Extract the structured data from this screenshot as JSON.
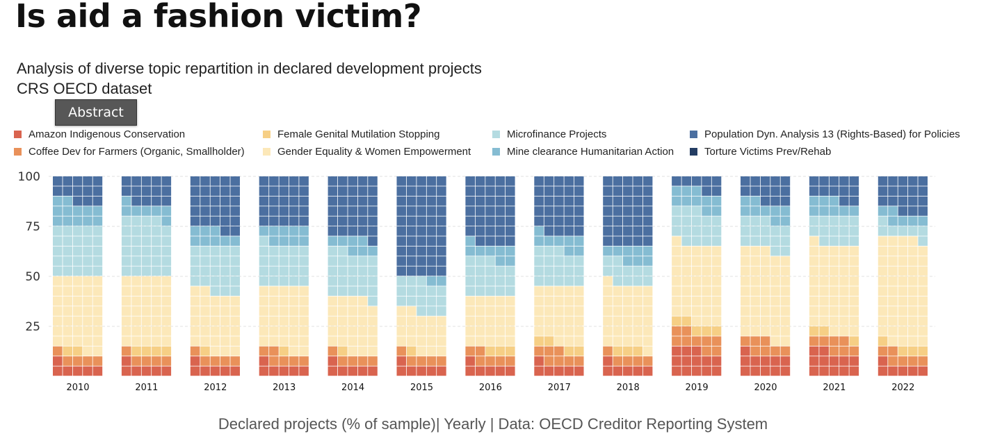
{
  "title": "Is aid a fashion victim?",
  "subtitle_line1": "Analysis of diverse topic repartition in declared development projects",
  "subtitle_line2": "CRS OECD dataset",
  "abstract_button": "Abstract",
  "caption": "Declared projects (% of sample)| Yearly | Data: OECD Creditor Reporting System",
  "chart_data": {
    "type": "bar",
    "subtype": "stacked waffle (100% per year, 5 columns x 20 rows, bottom-to-top fill)",
    "ylim": [
      0,
      100
    ],
    "y_ticks": [
      "100",
      "75",
      "50",
      "25"
    ],
    "grid": "horizontal dashed",
    "legend_position": "top",
    "categories": [
      "2010",
      "2011",
      "2012",
      "2013",
      "2014",
      "2015",
      "2016",
      "2017",
      "2018",
      "2019",
      "2020",
      "2021",
      "2022"
    ],
    "series": [
      {
        "name": "Amazon Indigenous Conservation",
        "color": "#d9644f",
        "values": [
          6,
          6,
          6,
          6,
          6,
          6,
          6,
          6,
          6,
          13,
          11,
          12,
          6
        ]
      },
      {
        "name": "Coffee Dev for Farmers (Organic, Smallholder)",
        "color": "#e9915a",
        "values": [
          5,
          5,
          5,
          6,
          5,
          5,
          6,
          7,
          5,
          9,
          7,
          7,
          6
        ]
      },
      {
        "name": "Female Genital Mutilation Stopping",
        "color": "#f6cf85",
        "values": [
          2,
          4,
          1,
          1,
          1,
          1,
          3,
          4,
          3,
          5,
          0,
          3,
          4
        ]
      },
      {
        "name": "Gender Equality & Women Empowerment",
        "color": "#fce8b9",
        "values": [
          37,
          35,
          30,
          32,
          27,
          20,
          25,
          28,
          32,
          39,
          45,
          44,
          53
        ]
      },
      {
        "name": "Microfinance Projects",
        "color": "#b4dbe1",
        "values": [
          25,
          29,
          23,
          21,
          23,
          16,
          18,
          18,
          11,
          17,
          15,
          14,
          7
        ]
      },
      {
        "name": "Mine clearance Humanitarian Action",
        "color": "#85bcd2",
        "values": [
          12,
          7,
          8,
          9,
          7,
          2,
          8,
          8,
          8,
          10,
          9,
          8,
          6
        ]
      },
      {
        "name": "Population Dyn. Analysis 13 (Rights-Based) for Policies",
        "color": "#4b6fa0",
        "values": [
          13,
          14,
          27,
          25,
          31,
          50,
          34,
          29,
          35,
          7,
          13,
          12,
          18
        ]
      },
      {
        "name": "Torture Victims Prev/Rehab",
        "color": "#243d63",
        "values": [
          0,
          0,
          0,
          0,
          0,
          0,
          0,
          0,
          0,
          0,
          0,
          0,
          0
        ]
      }
    ]
  }
}
